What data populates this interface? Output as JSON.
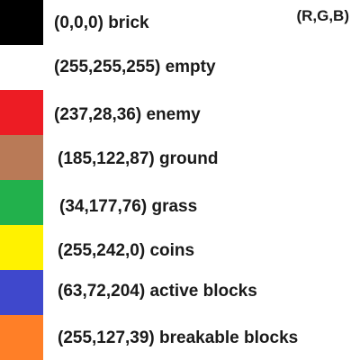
{
  "header": {
    "text": "(R,G,B)"
  },
  "legend": {
    "items": [
      {
        "label": "(0,0,0) brick",
        "color": "#000000"
      },
      {
        "label": "(255,255,255) empty",
        "color": "#ffffff"
      },
      {
        "label": "(237,28,36) enemy",
        "color": "#ed1c24"
      },
      {
        "label": "(185,122,87) ground",
        "color": "#b97a57"
      },
      {
        "label": "(34,177,76) grass",
        "color": "#22b14c"
      },
      {
        "label": "(255,242,0) coins",
        "color": "#fff200"
      },
      {
        "label": "(63,72,204) active blocks",
        "color": "#3f48cc"
      },
      {
        "label": "(255,127,39) breakable blocks",
        "color": "#ff7f27"
      }
    ]
  }
}
